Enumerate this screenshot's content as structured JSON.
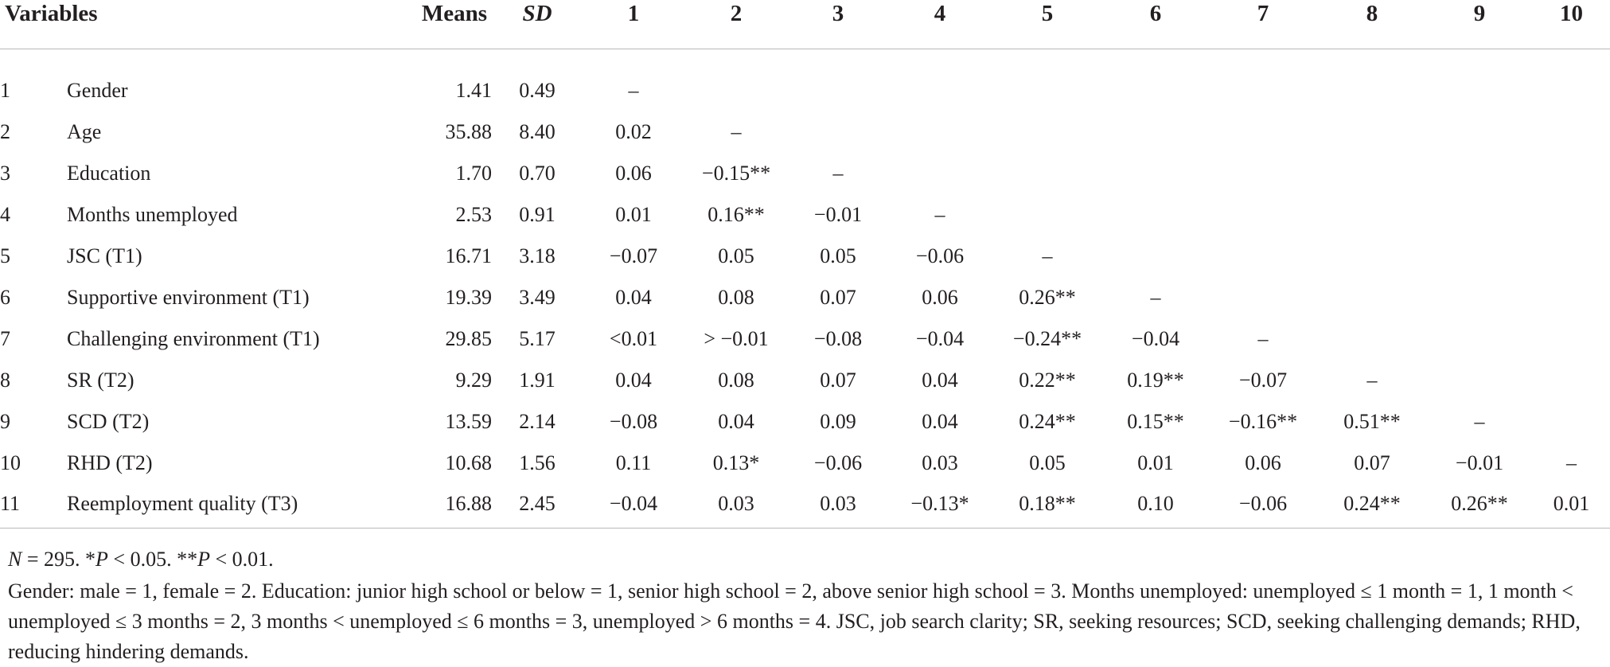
{
  "table": {
    "header": {
      "variables": "Variables",
      "means": "Means",
      "sd": "SD",
      "cols": [
        "1",
        "2",
        "3",
        "4",
        "5",
        "6",
        "7",
        "8",
        "9",
        "10"
      ]
    },
    "rows": [
      {
        "num": "1",
        "name": "Gender",
        "mean": "1.41",
        "sd": "0.49",
        "cells": [
          "–",
          "",
          "",
          "",
          "",
          "",
          "",
          "",
          "",
          ""
        ]
      },
      {
        "num": "2",
        "name": "Age",
        "mean": "35.88",
        "sd": "8.40",
        "cells": [
          "0.02",
          "–",
          "",
          "",
          "",
          "",
          "",
          "",
          "",
          ""
        ]
      },
      {
        "num": "3",
        "name": "Education",
        "mean": "1.70",
        "sd": "0.70",
        "cells": [
          "0.06",
          "−0.15**",
          "–",
          "",
          "",
          "",
          "",
          "",
          "",
          ""
        ]
      },
      {
        "num": "4",
        "name": "Months unemployed",
        "mean": "2.53",
        "sd": "0.91",
        "cells": [
          "0.01",
          "0.16**",
          "−0.01",
          "–",
          "",
          "",
          "",
          "",
          "",
          ""
        ]
      },
      {
        "num": "5",
        "name": "JSC (T1)",
        "mean": "16.71",
        "sd": "3.18",
        "cells": [
          "−0.07",
          "0.05",
          "0.05",
          "−0.06",
          "–",
          "",
          "",
          "",
          "",
          ""
        ]
      },
      {
        "num": "6",
        "name": "Supportive environment (T1)",
        "mean": "19.39",
        "sd": "3.49",
        "cells": [
          "0.04",
          "0.08",
          "0.07",
          "0.06",
          "0.26**",
          "–",
          "",
          "",
          "",
          ""
        ]
      },
      {
        "num": "7",
        "name": "Challenging environment (T1)",
        "mean": "29.85",
        "sd": "5.17",
        "cells": [
          "<0.01",
          "> −0.01",
          "−0.08",
          "−0.04",
          "−0.24**",
          "−0.04",
          "–",
          "",
          "",
          ""
        ]
      },
      {
        "num": "8",
        "name": "SR (T2)",
        "mean": "9.29",
        "sd": "1.91",
        "cells": [
          "0.04",
          "0.08",
          "0.07",
          "0.04",
          "0.22**",
          "0.19**",
          "−0.07",
          "–",
          "",
          ""
        ]
      },
      {
        "num": "9",
        "name": "SCD (T2)",
        "mean": "13.59",
        "sd": "2.14",
        "cells": [
          "−0.08",
          "0.04",
          "0.09",
          "0.04",
          "0.24**",
          "0.15**",
          "−0.16**",
          "0.51**",
          "–",
          ""
        ]
      },
      {
        "num": "10",
        "name": "RHD (T2)",
        "mean": "10.68",
        "sd": "1.56",
        "cells": [
          "0.11",
          "0.13*",
          "−0.06",
          "0.03",
          "0.05",
          "0.01",
          "0.06",
          "0.07",
          "−0.01",
          "–"
        ]
      },
      {
        "num": "11",
        "name": "Reemployment quality (T3)",
        "mean": "16.88",
        "sd": "2.45",
        "cells": [
          "−0.04",
          "0.03",
          "0.03",
          "−0.13*",
          "0.18**",
          "0.10",
          "−0.06",
          "0.24**",
          "0.26**",
          "0.01"
        ]
      }
    ]
  },
  "notes": {
    "n_prefix": "N",
    "n_text": " = 295. *",
    "p1_var": "P",
    "p1_text": " < 0.05. **",
    "p2_var": "P",
    "p2_text": " < 0.01.",
    "footnote": "Gender: male = 1, female = 2. Education: junior high school or below = 1, senior high school = 2, above senior high school = 3. Months unemployed: unemployed ≤ 1 month = 1, 1 month < unemployed ≤ 3 months = 2, 3 months < unemployed ≤ 6 months = 3, unemployed > 6 months = 4. JSC, job search clarity; SR, seeking resources; SCD, seeking challenging demands; RHD, reducing hindering demands."
  }
}
